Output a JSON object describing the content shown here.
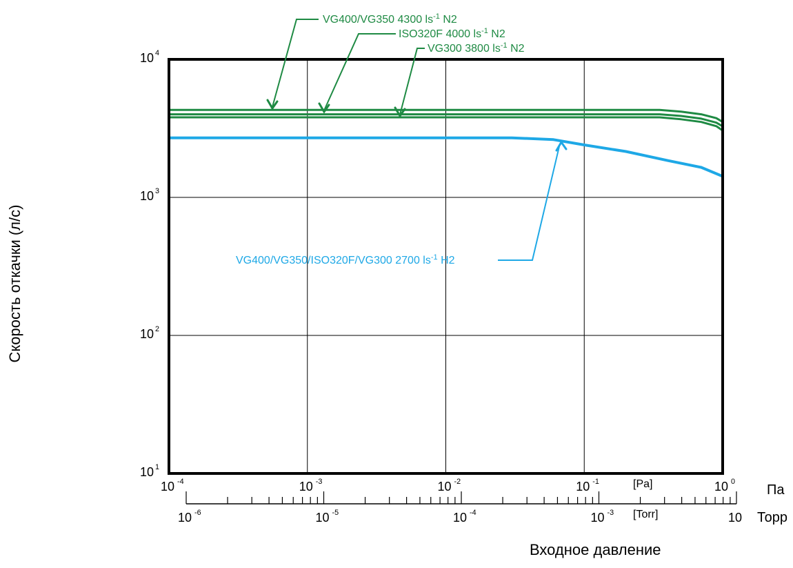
{
  "chart_data": {
    "type": "line",
    "ylabel": "Скорость откачки (л/с)",
    "xlabel": "Входное давление",
    "x_scale": "log",
    "y_scale": "log",
    "xlim": [
      0.0001,
      1
    ],
    "ylim": [
      10,
      10000
    ],
    "grid": true,
    "y_ticks": [
      {
        "base": "10",
        "exp": "1",
        "value": 10
      },
      {
        "base": "10",
        "exp": "2",
        "value": 100
      },
      {
        "base": "10",
        "exp": "3",
        "value": 1000
      },
      {
        "base": "10",
        "exp": "4",
        "value": 10000
      }
    ],
    "x_ticks_pa": [
      {
        "base": "10",
        "exp": "-4",
        "value": 0.0001
      },
      {
        "base": "10",
        "exp": "-3",
        "value": 0.001
      },
      {
        "base": "10",
        "exp": "-2",
        "value": 0.01
      },
      {
        "base": "10",
        "exp": "-1",
        "value": 0.1
      },
      {
        "base": "10",
        "exp": "0",
        "value": 1
      }
    ],
    "x_ticks_torr": [
      {
        "base": "10",
        "exp": "-6",
        "value": 1e-06
      },
      {
        "base": "10",
        "exp": "-5",
        "value": 1e-05
      },
      {
        "base": "10",
        "exp": "-4",
        "value": 0.0001
      },
      {
        "base": "10",
        "exp": "-3",
        "value": 0.001
      },
      {
        "base": "10",
        "exp": "",
        "value": 0.01
      }
    ],
    "pa_axis_label": "Па",
    "torr_axis_label": "Торр",
    "pa_unit_tag": "[Pa]",
    "torr_unit_tag": "[Torr]",
    "series": [
      {
        "color": "#1e8a43",
        "x": [
          0.0001,
          0.001,
          0.01,
          0.1,
          0.35,
          0.5,
          0.7,
          0.9,
          1.0
        ],
        "y": [
          4300,
          4300,
          4300,
          4300,
          4300,
          4180,
          4000,
          3750,
          3520
        ]
      },
      {
        "color": "#1e8a43",
        "x": [
          0.0001,
          0.001,
          0.01,
          0.1,
          0.35,
          0.5,
          0.7,
          0.9,
          1.0
        ],
        "y": [
          4000,
          4000,
          4000,
          4000,
          4000,
          3890,
          3720,
          3480,
          3270
        ]
      },
      {
        "color": "#1e8a43",
        "x": [
          0.0001,
          0.001,
          0.01,
          0.1,
          0.35,
          0.5,
          0.7,
          0.9,
          1.0
        ],
        "y": [
          3800,
          3800,
          3800,
          3800,
          3800,
          3680,
          3520,
          3280,
          3050
        ]
      },
      {
        "color": "#1ea8e6",
        "x": [
          0.0001,
          0.001,
          0.01,
          0.03,
          0.06,
          0.1,
          0.2,
          0.4,
          0.7,
          1.0
        ],
        "y": [
          2700,
          2700,
          2700,
          2700,
          2620,
          2400,
          2150,
          1850,
          1650,
          1420
        ]
      }
    ],
    "annotations": [
      {
        "text": "VG400/VG350 4300 ls",
        "sup": "-1",
        "suffix": " N2",
        "color": "#1e8a43"
      },
      {
        "text": "ISO320F 4000 ls",
        "sup": "-1",
        "suffix": " N2",
        "color": "#1e8a43"
      },
      {
        "text": "VG300 3800 ls",
        "sup": "-1",
        "suffix": " N2",
        "color": "#1e8a43"
      },
      {
        "text": "VG400/VG350/ISO320F/VG300  2700 ls",
        "sup": "-1",
        "suffix": " H2",
        "color": "#1ea8e6"
      }
    ]
  }
}
